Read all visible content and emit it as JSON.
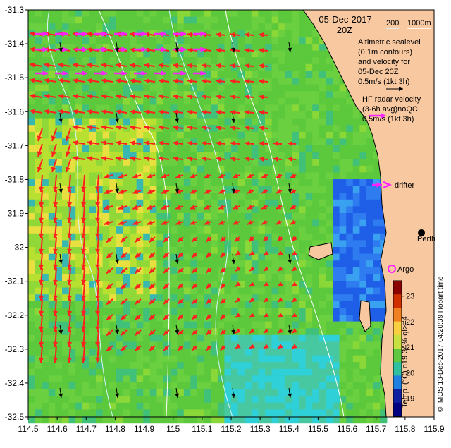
{
  "map": {
    "date_title": "05-Dec-2017",
    "time_title": "20Z",
    "scale_legend": {
      "contour_a": "200",
      "contour_b": "1000m"
    },
    "legend_altimetry": [
      "Altimetric sealevel",
      "(0.1m contours)",
      "and velocity for",
      "05-Dec 20Z",
      "0.5m/s (1kt 3h)"
    ],
    "legend_hf": [
      "HF radar velocity",
      "(3-6h avg)noQC",
      "0.5m/s (1kt 3h)"
    ],
    "drifter_label": "drifter",
    "argo_label": "Argo",
    "city_label": "Perth",
    "x_ticks": [
      "114.5",
      "114.6",
      "114.7",
      "114.8",
      "114.9",
      "115",
      "115.1",
      "115.2",
      "115.3",
      "115.4",
      "115.5",
      "115.6",
      "115.7",
      "115.8",
      "115.9"
    ],
    "y_ticks": [
      "-31.3",
      "-31.4",
      "-31.5",
      "-31.6",
      "-31.7",
      "-31.8",
      "-31.9",
      "-32",
      "-32.1",
      "-32.2",
      "-32.3",
      "-32.4",
      "-32.5"
    ],
    "credit": "© IMOS 13-Dec-2017 04:20:39 Hobart time",
    "colorbar": {
      "label": "Temp. (°C) n19 34% ql>=4",
      "ticks": [
        "23",
        "22",
        "21",
        "20",
        "19"
      ],
      "range": [
        18.3,
        23.6
      ]
    },
    "colors": {
      "land": "#f8c8a0",
      "ocean_base": "#5cc83c",
      "hf_arrow": "#ff2020",
      "drifter_arrow": "#ff20ff",
      "altimetry_arrow": "#000000",
      "bathymetry_contour": "#d8f4ff",
      "argo_marker": "#ff20ff"
    },
    "lon_range": [
      114.5,
      115.9
    ],
    "lat_range": [
      -32.5,
      -31.3
    ]
  }
}
